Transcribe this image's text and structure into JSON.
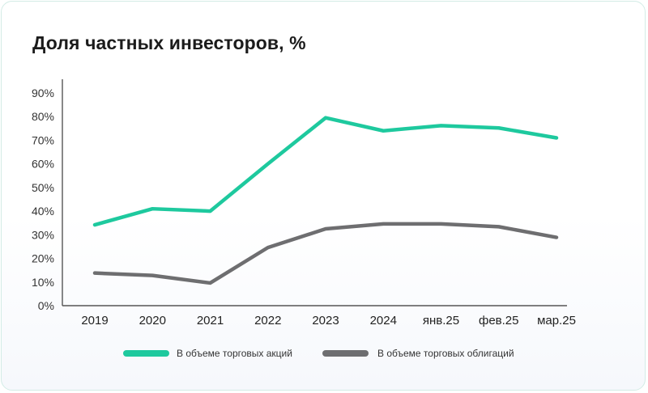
{
  "chart_data": {
    "type": "line",
    "title": "Доля частных инвесторов, %",
    "categories": [
      "2019",
      "2020",
      "2021",
      "2022",
      "2023",
      "2024",
      "янв.25",
      "фев.25",
      "мар.25"
    ],
    "y_ticks": [
      "0%",
      "10%",
      "20%",
      "30%",
      "40%",
      "50%",
      "60%",
      "70%",
      "80%",
      "90%"
    ],
    "ylim": [
      0,
      90
    ],
    "grid": false,
    "legend_position": "bottom",
    "series": [
      {
        "name": "В объеме торговых акций",
        "color": "#1ec99e",
        "values": [
          34.2,
          41.0,
          40.0,
          60.0,
          79.5,
          74.0,
          76.2,
          75.2,
          71.0
        ]
      },
      {
        "name": "В объеме торговых облигаций",
        "color": "#6e6e70",
        "values": [
          13.8,
          12.8,
          9.6,
          24.6,
          32.5,
          34.6,
          34.6,
          33.4,
          28.9
        ]
      }
    ]
  }
}
